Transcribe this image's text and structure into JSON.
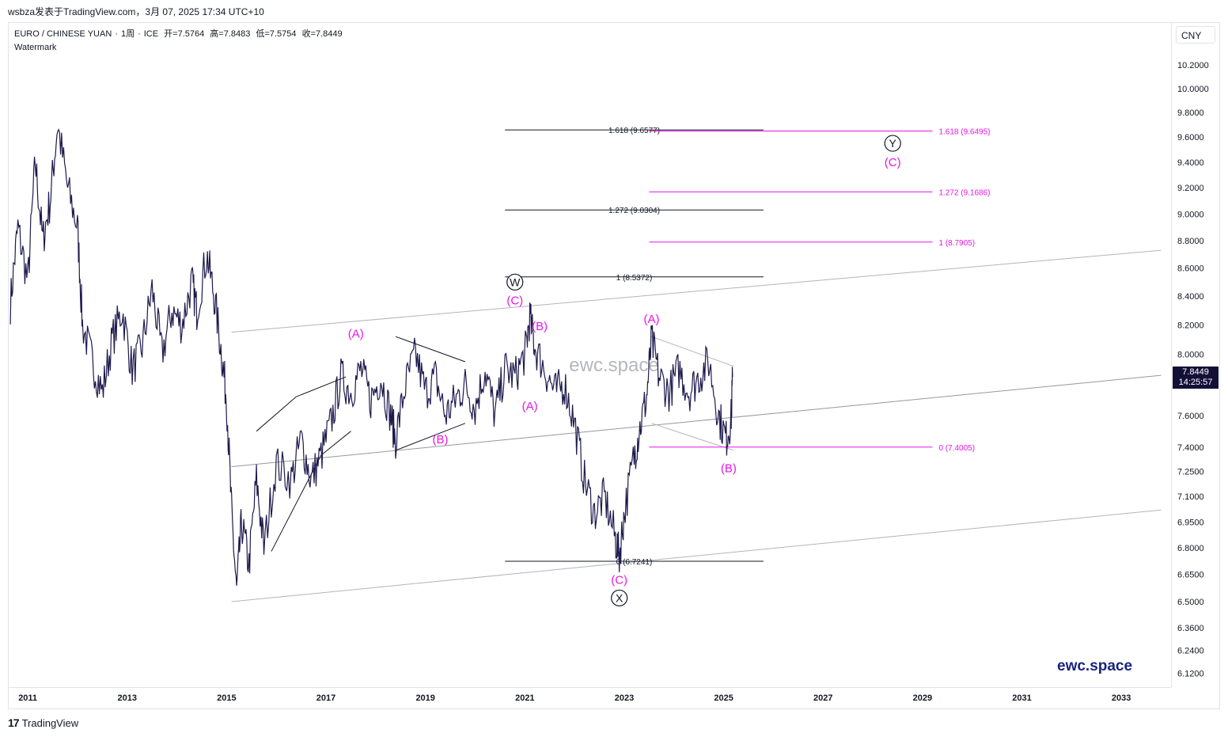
{
  "header": {
    "published_line": "wsbza发表于TradingView.com，3月 07, 2025 17:34 UTC+10"
  },
  "legend": {
    "symbol": "EURO / CHINESE YUAN",
    "interval": "1周",
    "exchange": "ICE",
    "open_label": "开",
    "open_value": "=7.5764",
    "high_label": "高",
    "high_value": "=7.8483",
    "low_label": "低",
    "low_value": "=7.5754",
    "close_label": "收",
    "close_value": "=7.8449",
    "watermark_label": "Watermark"
  },
  "currency_button": "CNY",
  "last_price": {
    "value": "7.8449",
    "countdown": "14:25:57"
  },
  "watermark_center": "ewc.space",
  "watermark_corner": "ewc.space",
  "footer": {
    "logo": "17",
    "brand": "TradingView"
  },
  "colors": {
    "price_line": "#1e1a4d",
    "magenta": "#e616e6",
    "channel": "#b2b5be",
    "black": "#131722",
    "tag_bg": "#131038"
  },
  "chart_data": {
    "type": "line",
    "title": "EURO / CHINESE YUAN",
    "y_scale": "log",
    "ylim": [
      6.05,
      10.35
    ],
    "xlim": [
      2010.6,
      2034.0
    ],
    "y_ticks": [
      "10.2000",
      "10.0000",
      "9.8000",
      "9.6000",
      "9.4000",
      "9.2000",
      "9.0000",
      "8.8000",
      "8.6000",
      "8.4000",
      "8.2000",
      "8.0000",
      "7.6000",
      "7.4000",
      "7.2500",
      "7.1000",
      "6.9500",
      "6.8000",
      "6.6500",
      "6.5000",
      "6.3600",
      "6.2400",
      "6.1200"
    ],
    "x_ticks": [
      "2011",
      "2013",
      "2015",
      "2017",
      "2019",
      "2021",
      "2023",
      "2025",
      "2027",
      "2029",
      "2031",
      "2033"
    ],
    "series": [
      {
        "points": [
          [
            2010.65,
            8.35
          ],
          [
            2010.8,
            8.9
          ],
          [
            2011.0,
            8.5
          ],
          [
            2011.15,
            9.4
          ],
          [
            2011.3,
            8.8
          ],
          [
            2011.45,
            9.1
          ],
          [
            2011.6,
            9.7
          ],
          [
            2011.8,
            9.2
          ],
          [
            2012.0,
            8.9
          ],
          [
            2012.1,
            8.2
          ],
          [
            2012.3,
            7.95
          ],
          [
            2012.5,
            7.75
          ],
          [
            2012.7,
            8.1
          ],
          [
            2012.9,
            8.3
          ],
          [
            2013.1,
            7.9
          ],
          [
            2013.3,
            8.05
          ],
          [
            2013.5,
            8.45
          ],
          [
            2013.7,
            8.0
          ],
          [
            2013.9,
            8.3
          ],
          [
            2014.1,
            8.2
          ],
          [
            2014.3,
            8.5
          ],
          [
            2014.4,
            8.3
          ],
          [
            2014.6,
            8.7
          ],
          [
            2014.75,
            8.4
          ],
          [
            2014.9,
            8.0
          ],
          [
            2015.0,
            7.7
          ],
          [
            2015.1,
            7.0
          ],
          [
            2015.2,
            6.55
          ],
          [
            2015.3,
            6.95
          ],
          [
            2015.45,
            6.7
          ],
          [
            2015.6,
            7.2
          ],
          [
            2015.75,
            6.8
          ],
          [
            2016.0,
            7.3
          ],
          [
            2016.3,
            7.2
          ],
          [
            2016.5,
            7.45
          ],
          [
            2016.7,
            7.2
          ],
          [
            2016.9,
            7.35
          ],
          [
            2017.1,
            7.55
          ],
          [
            2017.3,
            7.85
          ],
          [
            2017.5,
            7.75
          ],
          [
            2017.7,
            7.9
          ],
          [
            2017.9,
            7.7
          ],
          [
            2018.1,
            7.85
          ],
          [
            2018.3,
            7.6
          ],
          [
            2018.4,
            7.45
          ],
          [
            2018.6,
            7.8
          ],
          [
            2018.8,
            8.0
          ],
          [
            2019.0,
            7.75
          ],
          [
            2019.2,
            7.85
          ],
          [
            2019.4,
            7.6
          ],
          [
            2019.6,
            7.7
          ],
          [
            2019.8,
            7.8
          ],
          [
            2020.0,
            7.65
          ],
          [
            2020.2,
            7.9
          ],
          [
            2020.4,
            7.6
          ],
          [
            2020.6,
            7.9
          ],
          [
            2020.8,
            7.85
          ],
          [
            2021.0,
            8.0
          ],
          [
            2021.1,
            8.25
          ],
          [
            2021.2,
            8.05
          ],
          [
            2021.4,
            7.9
          ],
          [
            2021.6,
            7.75
          ],
          [
            2021.8,
            7.8
          ],
          [
            2022.0,
            7.55
          ],
          [
            2022.2,
            7.2
          ],
          [
            2022.4,
            7.0
          ],
          [
            2022.6,
            7.1
          ],
          [
            2022.8,
            6.88
          ],
          [
            2022.9,
            6.75
          ],
          [
            2023.0,
            7.0
          ],
          [
            2023.2,
            7.35
          ],
          [
            2023.3,
            7.5
          ],
          [
            2023.45,
            7.72
          ],
          [
            2023.55,
            8.1
          ],
          [
            2023.7,
            7.85
          ],
          [
            2023.9,
            7.75
          ],
          [
            2024.1,
            7.9
          ],
          [
            2024.3,
            7.75
          ],
          [
            2024.5,
            7.85
          ],
          [
            2024.7,
            7.95
          ],
          [
            2024.9,
            7.6
          ],
          [
            2025.05,
            7.45
          ],
          [
            2025.15,
            7.58
          ],
          [
            2025.18,
            7.85
          ]
        ]
      }
    ],
    "channel_lines": [
      {
        "from": [
          2015.1,
          8.15
        ],
        "to": [
          2033.8,
          8.73
        ]
      },
      {
        "from": [
          2015.1,
          7.28
        ],
        "to": [
          2033.8,
          7.86
        ]
      },
      {
        "from": [
          2015.1,
          6.5
        ],
        "to": [
          2033.8,
          7.02
        ]
      }
    ],
    "fib_levels_black": [
      {
        "label": "1.618 (9.6577)",
        "value": 9.6577
      },
      {
        "label": "1.272 (9.0304)",
        "value": 9.0304
      },
      {
        "label": "1 (8.5372)",
        "value": 8.5372
      },
      {
        "label": "0 (6.7241)",
        "value": 6.7241
      }
    ],
    "fib_levels_magenta": [
      {
        "label": "1.618 (9.6495)",
        "value": 9.6495
      },
      {
        "label": "1.272 (9.1686)",
        "value": 9.1686
      },
      {
        "label": "1 (8.7905)",
        "value": 8.7905
      },
      {
        "label": "0 (7.4005)",
        "value": 7.4005
      }
    ],
    "wave_labels": [
      {
        "text": "(A)",
        "x": 2017.6,
        "y": 8.14,
        "color": "magenta"
      },
      {
        "text": "(B)",
        "x": 2019.3,
        "y": 7.45,
        "color": "magenta"
      },
      {
        "text": "(C)",
        "x": 2020.8,
        "y": 8.37,
        "color": "magenta"
      },
      {
        "text": "W",
        "x": 2020.8,
        "y": 8.5,
        "color": "circle"
      },
      {
        "text": "(B)",
        "x": 2021.3,
        "y": 8.19,
        "color": "magenta"
      },
      {
        "text": "(A)",
        "x": 2021.1,
        "y": 7.66,
        "color": "magenta"
      },
      {
        "text": "(C)",
        "x": 2022.9,
        "y": 6.62,
        "color": "magenta"
      },
      {
        "text": "X",
        "x": 2022.9,
        "y": 6.52,
        "color": "circle"
      },
      {
        "text": "(A)",
        "x": 2023.55,
        "y": 8.24,
        "color": "magenta"
      },
      {
        "text": "(B)",
        "x": 2025.1,
        "y": 7.27,
        "color": "magenta"
      },
      {
        "text": "(C)",
        "x": 2028.4,
        "y": 9.4,
        "color": "magenta"
      },
      {
        "text": "Y",
        "x": 2028.4,
        "y": 9.55,
        "color": "circle"
      }
    ]
  }
}
